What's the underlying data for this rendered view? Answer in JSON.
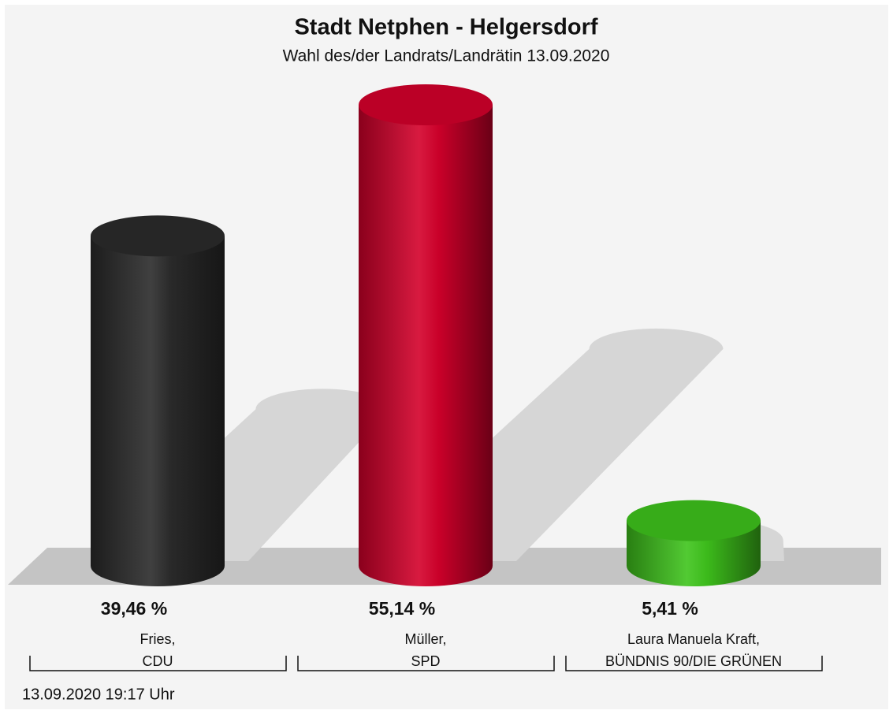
{
  "chart_data": {
    "type": "bar",
    "title": "Stadt Netphen - Helgersdorf",
    "subtitle": "Wahl des/der Landrats/Landrätin 13.09.2020",
    "categories": [
      [
        "Fries,",
        "CDU"
      ],
      [
        "Müller,",
        "SPD"
      ],
      [
        "Laura Manuela Kraft,",
        "BÜNDNIS 90/DIE GRÜNEN"
      ]
    ],
    "values": [
      39.46,
      55.14,
      5.41
    ],
    "value_labels": [
      "39,46 %",
      "55,14 %",
      "5,41 %"
    ],
    "colors": [
      "#2b2b2b",
      "#d4002b",
      "#3fc41c"
    ],
    "footer": "13.09.2020 19:17 Uhr"
  }
}
